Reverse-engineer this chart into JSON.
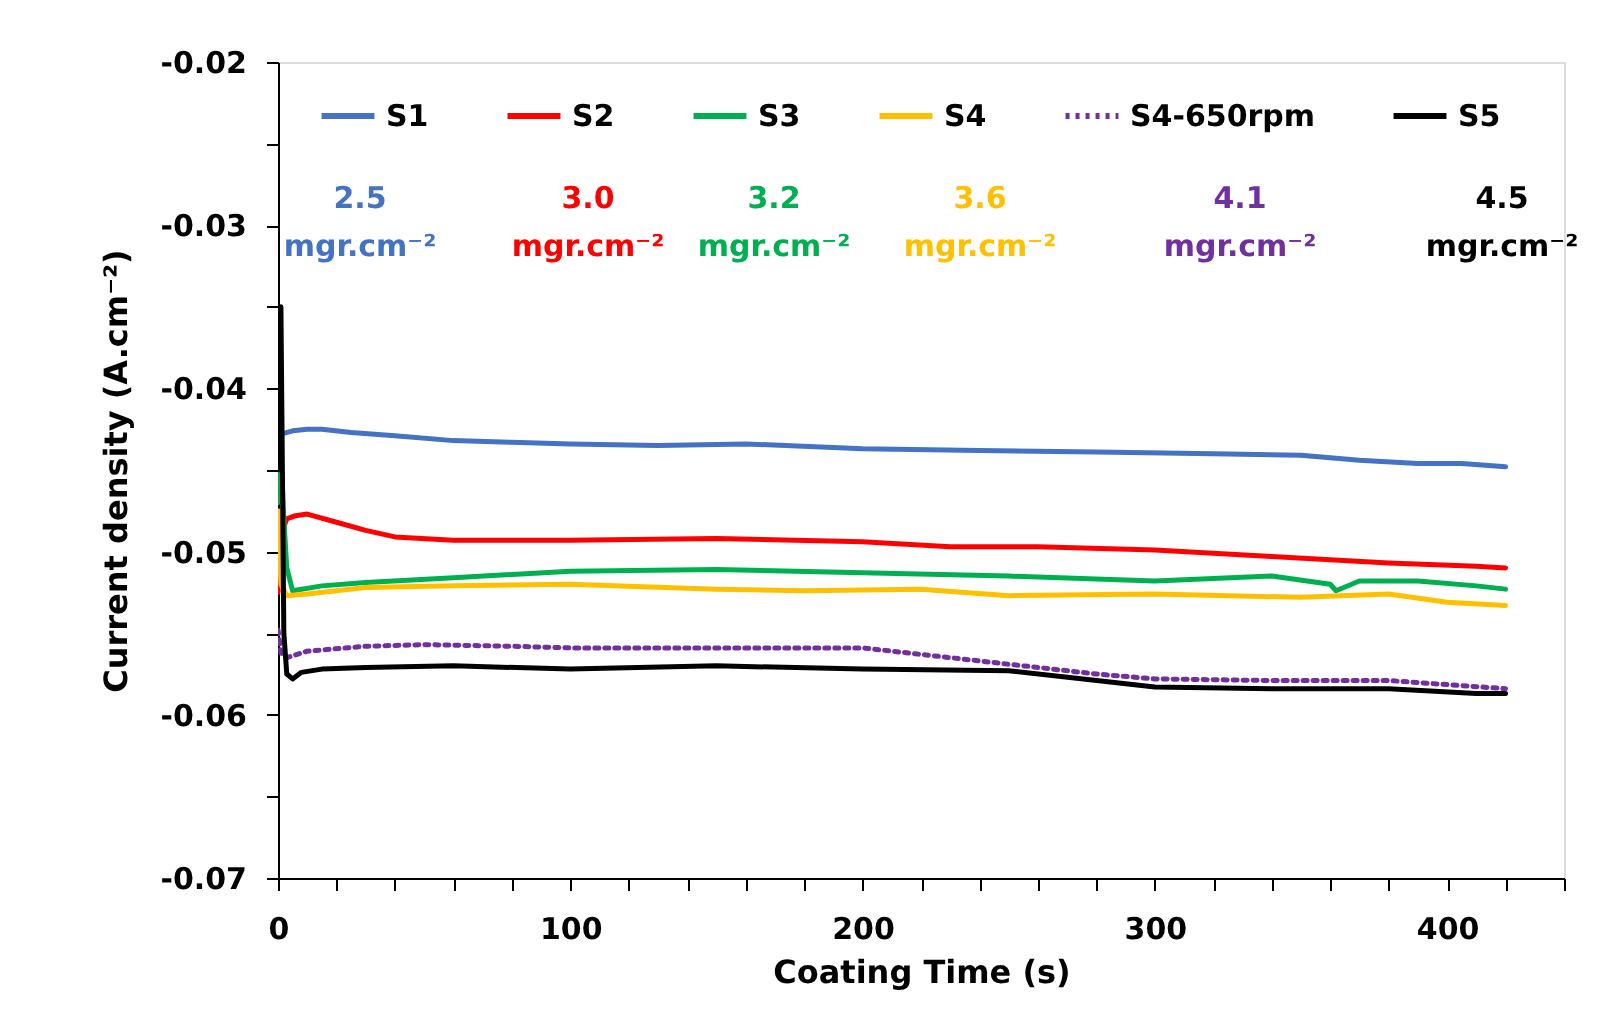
{
  "chart_data": {
    "type": "line",
    "xlabel": "Coating Time (s)",
    "ylabel": "Current density (A.cm⁻²)",
    "xlim": [
      0,
      440
    ],
    "xticks": [
      0,
      {
        "value": 20,
        "label": null
      },
      {
        "value": 40,
        "label": null
      },
      {
        "value": 60,
        "label": null
      },
      {
        "value": 80,
        "label": null
      },
      100,
      {
        "value": 120,
        "label": null
      },
      {
        "value": 140,
        "label": null
      },
      {
        "value": 160,
        "label": null
      },
      {
        "value": 180,
        "label": null
      },
      200,
      {
        "value": 220,
        "label": null
      },
      {
        "value": 240,
        "label": null
      },
      {
        "value": 260,
        "label": null
      },
      {
        "value": 280,
        "label": null
      },
      300,
      {
        "value": 320,
        "label": null
      },
      {
        "value": 340,
        "label": null
      },
      {
        "value": 360,
        "label": null
      },
      {
        "value": 380,
        "label": null
      },
      400,
      {
        "value": 420,
        "label": null
      },
      {
        "value": 440,
        "label": null
      }
    ],
    "ylim": [
      -0.07,
      -0.02
    ],
    "yticks": [
      -0.07,
      {
        "value": -0.065,
        "label": null
      },
      -0.06,
      {
        "value": -0.055,
        "label": null
      },
      -0.05,
      {
        "value": -0.045,
        "label": null
      },
      -0.04,
      {
        "value": -0.035,
        "label": null
      },
      -0.03,
      {
        "value": -0.025,
        "label": null
      },
      -0.02
    ],
    "grid": false,
    "legend": "top",
    "marker": "none",
    "series": [
      {
        "name": "S1",
        "color": "#4472c4",
        "line_style": "solid",
        "x": [
          1,
          5,
          10,
          15,
          25,
          40,
          60,
          80,
          100,
          130,
          160,
          200,
          240,
          280,
          320,
          350,
          370,
          390,
          405,
          420
        ],
        "values": [
          -0.0428,
          -0.0426,
          -0.0425,
          -0.0425,
          -0.0427,
          -0.0429,
          -0.0432,
          -0.0433,
          -0.0434,
          -0.0435,
          -0.0434,
          -0.0437,
          -0.0438,
          -0.0439,
          -0.044,
          -0.0441,
          -0.0444,
          -0.0446,
          -0.0446,
          -0.0448
        ]
      },
      {
        "name": "S2",
        "color": "#ff0000",
        "line_style": "solid",
        "x": [
          0,
          1,
          3,
          6,
          10,
          20,
          30,
          40,
          60,
          80,
          100,
          150,
          200,
          230,
          260,
          300,
          340,
          380,
          410,
          420
        ],
        "values": [
          -0.0525,
          -0.049,
          -0.048,
          -0.0478,
          -0.0477,
          -0.0482,
          -0.0487,
          -0.0491,
          -0.0493,
          -0.0493,
          -0.0493,
          -0.0492,
          -0.0494,
          -0.0497,
          -0.0497,
          -0.0499,
          -0.0503,
          -0.0507,
          -0.0509,
          -0.051
        ]
      },
      {
        "name": "S3",
        "color": "#00b050",
        "line_style": "solid",
        "x": [
          0,
          1,
          2,
          3,
          5,
          15,
          30,
          60,
          100,
          150,
          200,
          250,
          300,
          340,
          360,
          362,
          370,
          390,
          410,
          420
        ],
        "values": [
          -0.047,
          -0.044,
          -0.048,
          -0.051,
          -0.0524,
          -0.0521,
          -0.0519,
          -0.0516,
          -0.0512,
          -0.0511,
          -0.0513,
          -0.0515,
          -0.0518,
          -0.0515,
          -0.052,
          -0.0524,
          -0.0518,
          -0.0518,
          -0.0521,
          -0.0523
        ]
      },
      {
        "name": "S4",
        "color": "#ffc000",
        "line_style": "solid",
        "x": [
          0,
          1,
          3,
          10,
          30,
          60,
          100,
          150,
          180,
          220,
          250,
          300,
          350,
          380,
          400,
          420
        ],
        "values": [
          -0.0475,
          -0.052,
          -0.0527,
          -0.0526,
          -0.0522,
          -0.0521,
          -0.052,
          -0.0523,
          -0.0524,
          -0.0523,
          -0.0527,
          -0.0526,
          -0.0528,
          -0.0526,
          -0.0531,
          -0.0533
        ]
      },
      {
        "name": "S4-650rpm",
        "color": "#7030a0",
        "line_style": "dotted",
        "x": [
          0,
          1,
          3,
          10,
          30,
          50,
          80,
          100,
          150,
          200,
          240,
          280,
          300,
          340,
          380,
          420
        ],
        "values": [
          -0.0548,
          -0.0562,
          -0.0565,
          -0.0561,
          -0.0558,
          -0.0557,
          -0.0558,
          -0.0559,
          -0.0559,
          -0.0559,
          -0.0567,
          -0.0575,
          -0.0578,
          -0.0579,
          -0.0579,
          -0.0584
        ]
      },
      {
        "name": "S5",
        "color": "#000000",
        "line_style": "solid",
        "x": [
          0,
          1,
          1.5,
          2,
          3,
          5,
          8,
          15,
          30,
          60,
          100,
          150,
          200,
          250,
          300,
          340,
          380,
          410,
          420
        ],
        "values": [
          -0.045,
          -0.035,
          -0.045,
          -0.055,
          -0.0575,
          -0.0578,
          -0.0574,
          -0.0572,
          -0.0571,
          -0.057,
          -0.0572,
          -0.057,
          -0.0572,
          -0.0573,
          -0.0583,
          -0.0584,
          -0.0584,
          -0.0587,
          -0.0587
        ]
      }
    ],
    "annotations": [
      "2.5\nmgr.cm⁻²",
      "3.0\nmgr.cm⁻²",
      "3.2\nmgr.cm⁻²",
      "3.6\nmgr.cm⁻²",
      "4.1\nmgr.cm⁻²",
      "4.5\nmgr.cm⁻²"
    ]
  }
}
